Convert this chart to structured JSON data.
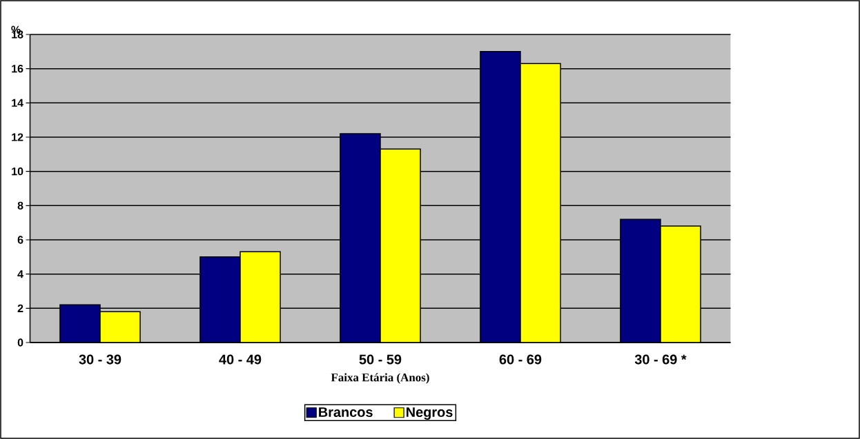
{
  "chart_data": {
    "type": "bar",
    "categories": [
      "30 - 39",
      "40 - 49",
      "50 - 59",
      "60 - 69",
      "30 - 69 *"
    ],
    "series": [
      {
        "name": "Brancos",
        "color": "#000080",
        "values": [
          2.2,
          5.0,
          12.2,
          17.0,
          7.2
        ]
      },
      {
        "name": "Negros",
        "color": "#ffff00",
        "values": [
          1.8,
          5.3,
          11.3,
          16.3,
          6.8
        ]
      }
    ],
    "xlabel": "Faixa Etária (Anos)",
    "ylabel": "%",
    "ylim": [
      0,
      18
    ],
    "yticks": [
      0,
      2,
      4,
      6,
      8,
      10,
      12,
      14,
      16,
      18
    ],
    "grid": "y",
    "legend": "bottom"
  }
}
